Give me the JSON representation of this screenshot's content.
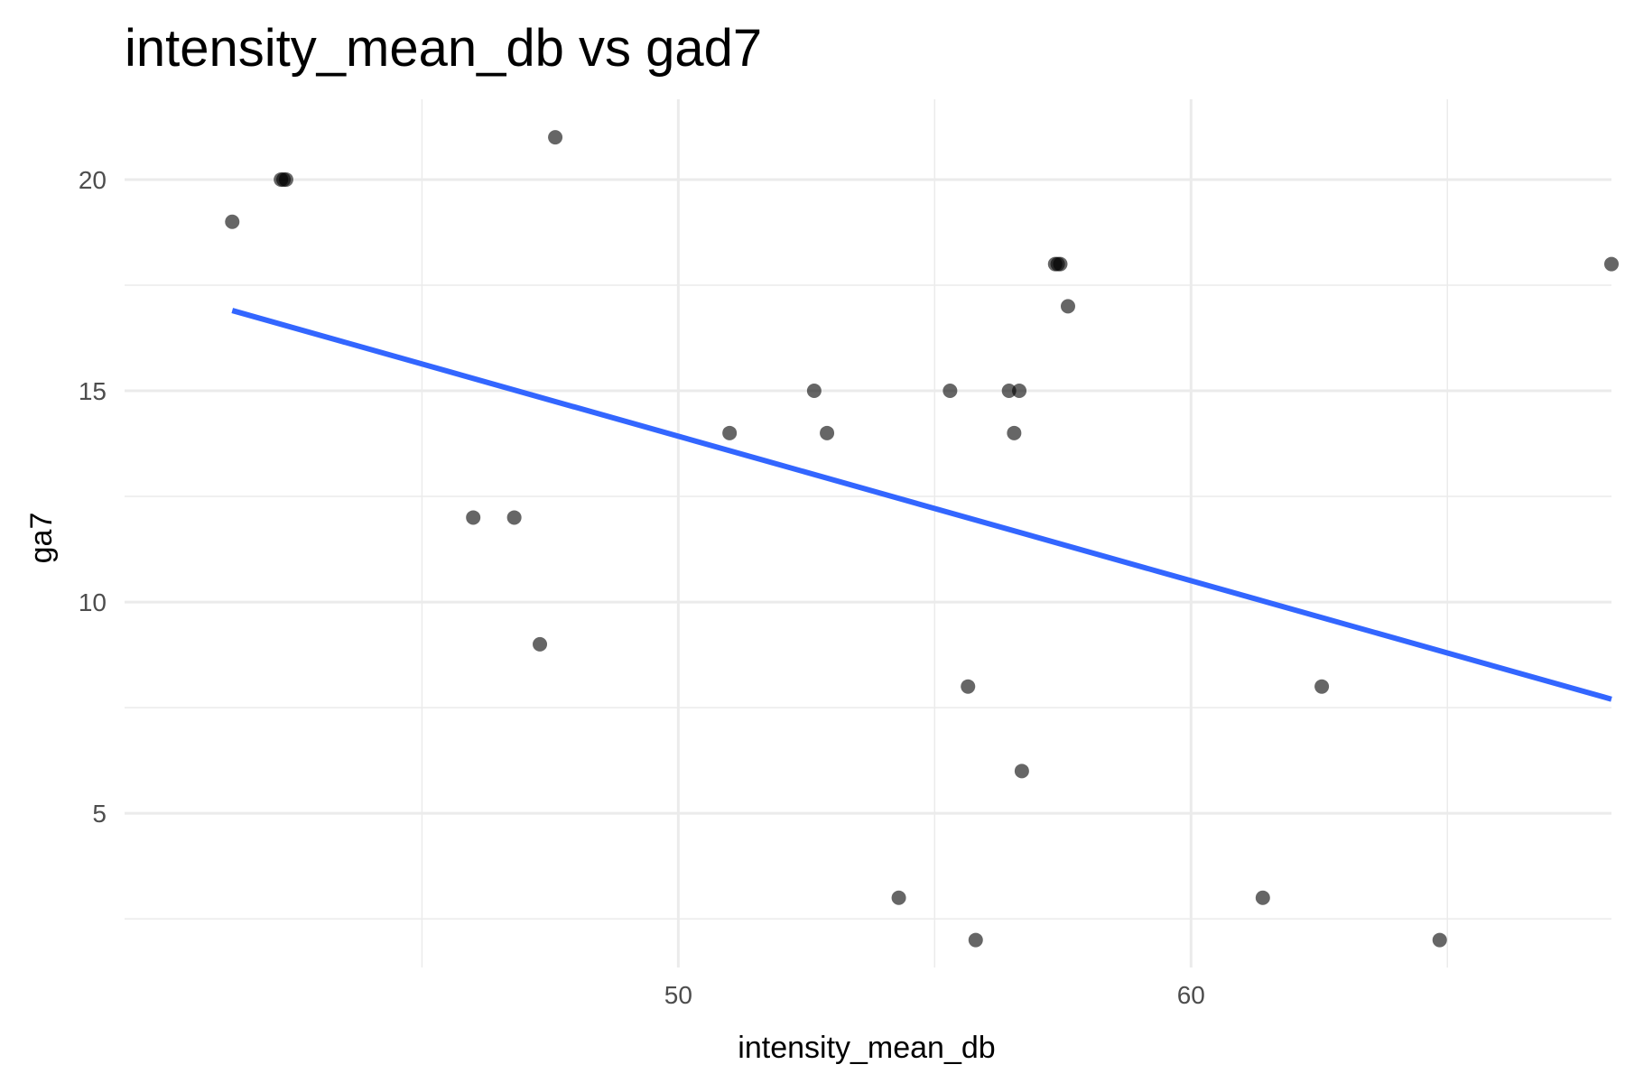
{
  "chart_data": {
    "type": "scatter",
    "title": "intensity_mean_db vs gad7",
    "xlabel": "intensity_mean_db",
    "ylabel": "ga7",
    "xlim": [
      39.2,
      68.2
    ],
    "ylim": [
      1.35,
      21.9
    ],
    "x_ticks_major": [
      50,
      60
    ],
    "x_ticks_minor": [
      45,
      55,
      65
    ],
    "y_ticks_major": [
      5,
      10,
      15,
      20
    ],
    "y_ticks_minor": [
      2.5,
      7.5,
      12.5,
      17.5
    ],
    "grid": true,
    "legend": "none",
    "point_color": "#000000",
    "point_opacity": 0.6,
    "trend_color": "#3366FF",
    "points": [
      {
        "x": 41.3,
        "y": 19
      },
      {
        "x": 42.25,
        "y": 20
      },
      {
        "x": 42.3,
        "y": 20
      },
      {
        "x": 42.35,
        "y": 20
      },
      {
        "x": 46.0,
        "y": 12
      },
      {
        "x": 46.8,
        "y": 12
      },
      {
        "x": 47.3,
        "y": 9
      },
      {
        "x": 47.6,
        "y": 21
      },
      {
        "x": 51.0,
        "y": 14
      },
      {
        "x": 52.65,
        "y": 15
      },
      {
        "x": 52.9,
        "y": 14
      },
      {
        "x": 54.3,
        "y": 3
      },
      {
        "x": 55.3,
        "y": 15
      },
      {
        "x": 55.65,
        "y": 8
      },
      {
        "x": 55.8,
        "y": 2
      },
      {
        "x": 56.45,
        "y": 15
      },
      {
        "x": 56.55,
        "y": 14
      },
      {
        "x": 56.65,
        "y": 15
      },
      {
        "x": 56.7,
        "y": 6
      },
      {
        "x": 57.35,
        "y": 18
      },
      {
        "x": 57.4,
        "y": 18
      },
      {
        "x": 57.45,
        "y": 18
      },
      {
        "x": 57.6,
        "y": 17
      },
      {
        "x": 61.4,
        "y": 3
      },
      {
        "x": 62.55,
        "y": 8
      },
      {
        "x": 64.85,
        "y": 2
      },
      {
        "x": 68.2,
        "y": 18
      }
    ],
    "trend_line": {
      "x": [
        41.3,
        68.2
      ],
      "y": [
        16.9,
        7.7
      ]
    }
  }
}
